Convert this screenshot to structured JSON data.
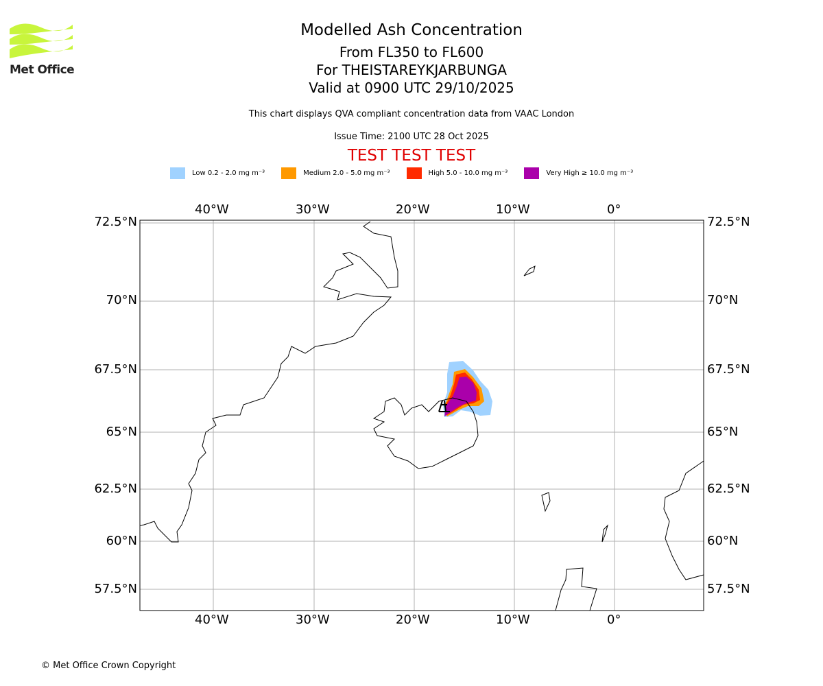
{
  "logo": {
    "text": "Met Office",
    "color": "#c8f53c"
  },
  "title": {
    "main": "Modelled Ash Concentration",
    "levels": "From FL350 to FL600",
    "volcano": "For THEISTAREYKJARBUNGA",
    "valid": "Valid at 0900 UTC 29/10/2025"
  },
  "subtitle": "This chart displays QVA compliant concentration data from VAAC London",
  "issue_time": "Issue Time: 2100 UTC 28 Oct 2025",
  "test_banner": {
    "text": "TEST TEST TEST",
    "color": "#e00000"
  },
  "legend": [
    {
      "label": "Low 0.2 - 2.0 mg m⁻³",
      "color": "#a0d2ff"
    },
    {
      "label": "Medium 2.0 - 5.0 mg m⁻³",
      "color": "#ff9900"
    },
    {
      "label": "High 5.0 - 10.0 mg m⁻³",
      "color": "#ff2a00"
    },
    {
      "label": "Very High ≥ 10.0 mg m⁻³",
      "color": "#aa00aa"
    }
  ],
  "chart_data": {
    "type": "map",
    "x_ticks": [
      "40°W",
      "30°W",
      "20°W",
      "10°W",
      "0°"
    ],
    "y_ticks": [
      "72.5°N",
      "70°N",
      "67.5°N",
      "65°N",
      "62.5°N",
      "60°N",
      "57.5°N"
    ],
    "lon_range": [
      -47.3,
      8.9
    ],
    "lat_range": [
      56.6,
      72.6
    ],
    "volcano_location": {
      "lat": 65.9,
      "lon": -16.8
    }
  },
  "copyright": "© Met Office Crown Copyright"
}
